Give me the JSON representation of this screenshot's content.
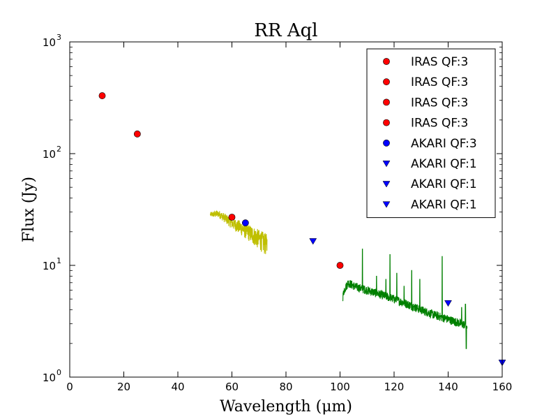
{
  "chart_data": {
    "type": "scatter",
    "title": "RR Aql",
    "xlabel": "Wavelength (μm)",
    "ylabel": "Flux (Jy)",
    "xlim": [
      0,
      160
    ],
    "ylim": [
      1,
      1000
    ],
    "yscale": "log",
    "x_ticks": [
      "0",
      "20",
      "40",
      "60",
      "80",
      "100",
      "120",
      "140",
      "160"
    ],
    "y_ticks": [
      {
        "base": "10",
        "exp": "0"
      },
      {
        "base": "10",
        "exp": "1"
      },
      {
        "base": "10",
        "exp": "2"
      },
      {
        "base": "10",
        "exp": "3"
      }
    ],
    "legend_position": "top-right",
    "legend": [
      {
        "label": "IRAS QF:3",
        "marker": "circle",
        "color": "#ff0000"
      },
      {
        "label": "IRAS QF:3",
        "marker": "circle",
        "color": "#ff0000"
      },
      {
        "label": "IRAS QF:3",
        "marker": "circle",
        "color": "#ff0000"
      },
      {
        "label": "IRAS QF:3",
        "marker": "circle",
        "color": "#ff0000"
      },
      {
        "label": "AKARI QF:3",
        "marker": "circle",
        "color": "#0000ff"
      },
      {
        "label": "AKARI QF:1",
        "marker": "triangle-down",
        "color": "#0000ff"
      },
      {
        "label": "AKARI QF:1",
        "marker": "triangle-down",
        "color": "#0000ff"
      },
      {
        "label": "AKARI QF:1",
        "marker": "triangle-down",
        "color": "#0000ff"
      }
    ],
    "points": [
      {
        "x": 12,
        "y": 330,
        "marker": "circle",
        "color": "#ff0000"
      },
      {
        "x": 25,
        "y": 150,
        "marker": "circle",
        "color": "#ff0000"
      },
      {
        "x": 60,
        "y": 27,
        "marker": "circle",
        "color": "#ff0000"
      },
      {
        "x": 100,
        "y": 10,
        "marker": "circle",
        "color": "#ff0000"
      },
      {
        "x": 65,
        "y": 24,
        "marker": "circle",
        "color": "#0000ff"
      },
      {
        "x": 90,
        "y": 16.5,
        "marker": "triangle-down",
        "color": "#0000ff"
      },
      {
        "x": 140,
        "y": 4.6,
        "marker": "triangle-down",
        "color": "#0000ff"
      },
      {
        "x": 160,
        "y": 1.35,
        "marker": "triangle-down",
        "color": "#0000ff"
      }
    ],
    "spectra": [
      {
        "color": "#bfbf00",
        "x_range": [
          52,
          73
        ],
        "anchors": [
          [
            52,
            28.5
          ],
          [
            55,
            29
          ],
          [
            57,
            27
          ],
          [
            60,
            24
          ],
          [
            63,
            22
          ],
          [
            66,
            20
          ],
          [
            69,
            18
          ],
          [
            73,
            15.5
          ]
        ]
      },
      {
        "color": "#008000",
        "x_range": [
          101,
          147
        ],
        "anchors": [
          [
            101,
            5.2
          ],
          [
            101.5,
            6.0
          ],
          [
            103,
            7.0
          ],
          [
            106,
            6.4
          ],
          [
            110,
            6.0
          ],
          [
            115,
            5.5
          ],
          [
            120,
            5.0
          ],
          [
            125,
            4.5
          ],
          [
            130,
            4.0
          ],
          [
            135,
            3.6
          ],
          [
            140,
            3.3
          ],
          [
            145,
            3.0
          ],
          [
            147,
            2.9
          ]
        ],
        "spikes": [
          [
            108.3,
            14
          ],
          [
            113.5,
            8
          ],
          [
            117,
            7.5
          ],
          [
            118.5,
            12.5
          ],
          [
            121,
            8.5
          ],
          [
            123.7,
            6.5
          ],
          [
            126.5,
            9
          ],
          [
            129.5,
            7.5
          ],
          [
            137.8,
            12
          ],
          [
            145,
            4.2
          ],
          [
            146.4,
            4.5
          ],
          [
            146.7,
            1.8
          ]
        ]
      }
    ]
  }
}
